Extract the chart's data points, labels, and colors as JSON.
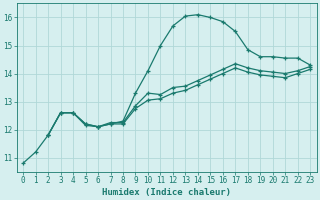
{
  "title": "",
  "xlabel": "Humidex (Indice chaleur)",
  "xlim": [
    -0.5,
    23.5
  ],
  "ylim": [
    10.5,
    16.5
  ],
  "yticks": [
    11,
    12,
    13,
    14,
    15,
    16
  ],
  "xticks": [
    0,
    1,
    2,
    3,
    4,
    5,
    6,
    7,
    8,
    9,
    10,
    11,
    12,
    13,
    14,
    15,
    16,
    17,
    18,
    19,
    20,
    21,
    22,
    23
  ],
  "bg_color": "#d6efef",
  "grid_color": "#b0d8d8",
  "line_color": "#1a7a6e",
  "series": [
    {
      "x": [
        0,
        1,
        2,
        3,
        4,
        5,
        6,
        7,
        8,
        9,
        10,
        11,
        12,
        13,
        14,
        15,
        16,
        17,
        18,
        19,
        20,
        21,
        22,
        23
      ],
      "y": [
        10.8,
        11.2,
        11.8,
        12.6,
        12.6,
        12.2,
        12.1,
        12.2,
        12.3,
        13.3,
        14.1,
        15.0,
        15.7,
        16.05,
        16.1,
        16.0,
        15.85,
        15.5,
        14.85,
        14.6,
        14.6,
        14.55,
        14.55,
        14.3
      ]
    },
    {
      "x": [
        2,
        3,
        4,
        5,
        6,
        7,
        8,
        9,
        10,
        11,
        12,
        13,
        14,
        15,
        16,
        17,
        18,
        19,
        20,
        21,
        22,
        23
      ],
      "y": [
        11.8,
        12.6,
        12.6,
        12.2,
        12.1,
        12.25,
        12.25,
        12.85,
        13.3,
        13.25,
        13.5,
        13.55,
        13.75,
        13.95,
        14.15,
        14.35,
        14.2,
        14.1,
        14.05,
        14.0,
        14.1,
        14.25
      ]
    },
    {
      "x": [
        2,
        3,
        4,
        5,
        6,
        7,
        8,
        9,
        10,
        11,
        12,
        13,
        14,
        15,
        16,
        17,
        18,
        19,
        20,
        21,
        22,
        23
      ],
      "y": [
        11.8,
        12.6,
        12.6,
        12.15,
        12.1,
        12.2,
        12.2,
        12.75,
        13.05,
        13.1,
        13.3,
        13.4,
        13.6,
        13.8,
        14.0,
        14.2,
        14.05,
        13.95,
        13.9,
        13.85,
        14.0,
        14.15
      ]
    }
  ],
  "font_family": "monospace"
}
